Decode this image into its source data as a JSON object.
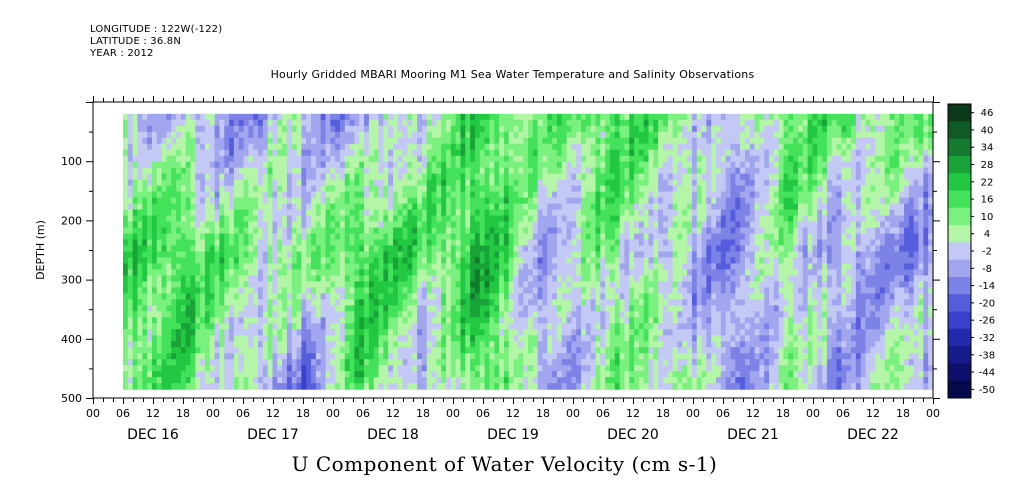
{
  "header": {
    "longitude": "LONGITUDE : 122W(-122)",
    "latitude": "LATITUDE : 36.8N",
    "year": "YEAR : 2012"
  },
  "chart_data": {
    "type": "heatmap",
    "title": "Hourly Gridded MBARI Mooring M1 Sea Water Temperature and Salinity Observations",
    "subtitle": "U Component of Water Velocity (cm s-1)",
    "ylabel": "DEPTH (m)",
    "y_ticks": [
      100,
      200,
      300,
      400,
      500
    ],
    "ylim": [
      500,
      0
    ],
    "y_inverted": true,
    "x_hour_ticks": [
      "00",
      "06",
      "12",
      "18",
      "00",
      "06",
      "12",
      "18",
      "00",
      "06",
      "12",
      "18",
      "00",
      "06",
      "12",
      "18",
      "00",
      "06",
      "12",
      "18",
      "00",
      "06",
      "12",
      "18",
      "00",
      "06",
      "12",
      "18",
      "00"
    ],
    "x_day_labels": [
      "DEC 16",
      "DEC 17",
      "DEC 18",
      "DEC 19",
      "DEC 20",
      "DEC 21",
      "DEC 22"
    ],
    "colorbar": {
      "labels": [
        "46",
        "40",
        "34",
        "28",
        "22",
        "16",
        "10",
        "4",
        "-2",
        "-8",
        "-14",
        "-20",
        "-26",
        "-32",
        "-38",
        "-44",
        "-50"
      ],
      "colors": [
        "#0a3a1a",
        "#0f5a26",
        "#137a2e",
        "#18a238",
        "#22c842",
        "#44e25a",
        "#7af07e",
        "#b4f5a8",
        "#c4c8f4",
        "#a2a6ee",
        "#7c82e6",
        "#565ede",
        "#3a40cc",
        "#2428ac",
        "#161a8a",
        "#0d106a",
        "#06084c"
      ]
    },
    "data_depth_range_m": [
      20,
      485
    ],
    "data_time_start": "DEC 16 06",
    "data_time_end": "DEC 22 24",
    "velocity_columns": [
      {
        "time": "DEC 16 06",
        "u_upper": 2,
        "u_mid": 14,
        "u_deep": 10
      },
      {
        "time": "DEC 16 18",
        "u_upper": -8,
        "u_mid": 16,
        "u_deep": 12
      },
      {
        "time": "DEC 17 06",
        "u_upper": -10,
        "u_mid": 8,
        "u_deep": -4
      },
      {
        "time": "DEC 17 18",
        "u_upper": -4,
        "u_mid": 4,
        "u_deep": -16
      },
      {
        "time": "DEC 18 06",
        "u_upper": -12,
        "u_mid": 18,
        "u_deep": 14
      },
      {
        "time": "DEC 18 18",
        "u_upper": 6,
        "u_mid": 12,
        "u_deep": -10
      },
      {
        "time": "DEC 19 06",
        "u_upper": 14,
        "u_mid": 22,
        "u_deep": 16
      },
      {
        "time": "DEC 19 18",
        "u_upper": 10,
        "u_mid": -6,
        "u_deep": -8
      },
      {
        "time": "DEC 20 06",
        "u_upper": 16,
        "u_mid": 8,
        "u_deep": 4
      },
      {
        "time": "DEC 20 18",
        "u_upper": 12,
        "u_mid": -4,
        "u_deep": 10
      },
      {
        "time": "DEC 21 06",
        "u_upper": -6,
        "u_mid": -10,
        "u_deep": -8
      },
      {
        "time": "DEC 21 18",
        "u_upper": 14,
        "u_mid": 6,
        "u_deep": 2
      },
      {
        "time": "DEC 22 06",
        "u_upper": 12,
        "u_mid": -8,
        "u_deep": -6
      },
      {
        "time": "DEC 22 18",
        "u_upper": 8,
        "u_mid": -12,
        "u_deep": 4
      }
    ]
  }
}
